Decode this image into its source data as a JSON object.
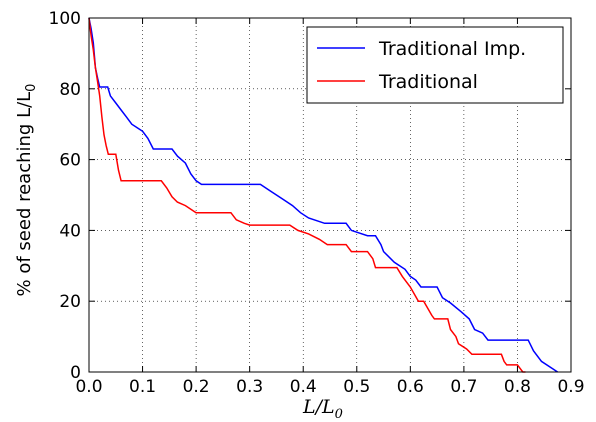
{
  "chart_data": {
    "type": "line",
    "title": "",
    "xlabel": "L/L",
    "xlabel_sub": "0",
    "ylabel": "% of seed reaching L/L",
    "ylabel_sub": "0",
    "xlim": [
      0.0,
      0.9
    ],
    "ylim": [
      0,
      100
    ],
    "xticks": [
      "0.0",
      "0.1",
      "0.2",
      "0.3",
      "0.4",
      "0.5",
      "0.6",
      "0.7",
      "0.8",
      "0.9"
    ],
    "yticks": [
      "0",
      "20",
      "40",
      "60",
      "80",
      "100"
    ],
    "grid": true,
    "legend_position": "top-right",
    "series": [
      {
        "name": "Traditional Imp.",
        "color": "#0000ff",
        "points": [
          [
            0.0,
            100
          ],
          [
            0.004,
            97
          ],
          [
            0.008,
            93
          ],
          [
            0.012,
            86
          ],
          [
            0.016,
            83
          ],
          [
            0.02,
            80.5
          ],
          [
            0.035,
            80.5
          ],
          [
            0.04,
            78
          ],
          [
            0.05,
            76
          ],
          [
            0.06,
            74
          ],
          [
            0.07,
            72
          ],
          [
            0.08,
            70
          ],
          [
            0.09,
            69
          ],
          [
            0.1,
            68
          ],
          [
            0.11,
            66
          ],
          [
            0.12,
            63
          ],
          [
            0.155,
            63
          ],
          [
            0.165,
            61
          ],
          [
            0.18,
            59
          ],
          [
            0.19,
            56
          ],
          [
            0.2,
            54
          ],
          [
            0.21,
            53
          ],
          [
            0.32,
            53
          ],
          [
            0.34,
            51
          ],
          [
            0.36,
            49
          ],
          [
            0.38,
            47
          ],
          [
            0.395,
            45
          ],
          [
            0.41,
            43.5
          ],
          [
            0.44,
            42
          ],
          [
            0.48,
            42
          ],
          [
            0.49,
            40
          ],
          [
            0.52,
            38.5
          ],
          [
            0.535,
            38.5
          ],
          [
            0.545,
            36
          ],
          [
            0.55,
            34
          ],
          [
            0.57,
            31
          ],
          [
            0.59,
            29
          ],
          [
            0.6,
            27
          ],
          [
            0.61,
            26
          ],
          [
            0.62,
            24
          ],
          [
            0.65,
            24
          ],
          [
            0.66,
            21
          ],
          [
            0.675,
            19.5
          ],
          [
            0.695,
            17
          ],
          [
            0.71,
            15
          ],
          [
            0.72,
            12
          ],
          [
            0.735,
            11
          ],
          [
            0.745,
            9
          ],
          [
            0.82,
            9
          ],
          [
            0.83,
            6
          ],
          [
            0.845,
            3
          ],
          [
            0.865,
            1
          ],
          [
            0.875,
            0
          ]
        ]
      },
      {
        "name": "Traditional",
        "color": "#ff0000",
        "points": [
          [
            0.0,
            100
          ],
          [
            0.004,
            95
          ],
          [
            0.008,
            91
          ],
          [
            0.012,
            86
          ],
          [
            0.016,
            82
          ],
          [
            0.02,
            78
          ],
          [
            0.024,
            72
          ],
          [
            0.028,
            67
          ],
          [
            0.032,
            64
          ],
          [
            0.036,
            61.5
          ],
          [
            0.05,
            61.5
          ],
          [
            0.055,
            57
          ],
          [
            0.06,
            54
          ],
          [
            0.135,
            54
          ],
          [
            0.145,
            52
          ],
          [
            0.155,
            49.5
          ],
          [
            0.165,
            48
          ],
          [
            0.18,
            47
          ],
          [
            0.2,
            45
          ],
          [
            0.225,
            45
          ],
          [
            0.265,
            45
          ],
          [
            0.275,
            43
          ],
          [
            0.29,
            42
          ],
          [
            0.3,
            41.5
          ],
          [
            0.375,
            41.5
          ],
          [
            0.39,
            40
          ],
          [
            0.41,
            39
          ],
          [
            0.43,
            37.5
          ],
          [
            0.445,
            36
          ],
          [
            0.48,
            36
          ],
          [
            0.49,
            34
          ],
          [
            0.52,
            34
          ],
          [
            0.53,
            32
          ],
          [
            0.535,
            29.5
          ],
          [
            0.575,
            29.5
          ],
          [
            0.585,
            27
          ],
          [
            0.6,
            24
          ],
          [
            0.615,
            20
          ],
          [
            0.625,
            20
          ],
          [
            0.64,
            16
          ],
          [
            0.645,
            15
          ],
          [
            0.67,
            15
          ],
          [
            0.675,
            12
          ],
          [
            0.685,
            10
          ],
          [
            0.69,
            8
          ],
          [
            0.705,
            6.5
          ],
          [
            0.715,
            5
          ],
          [
            0.77,
            5
          ],
          [
            0.775,
            3
          ],
          [
            0.78,
            2
          ],
          [
            0.8,
            2
          ],
          [
            0.81,
            0
          ],
          [
            0.815,
            0
          ]
        ]
      }
    ]
  }
}
